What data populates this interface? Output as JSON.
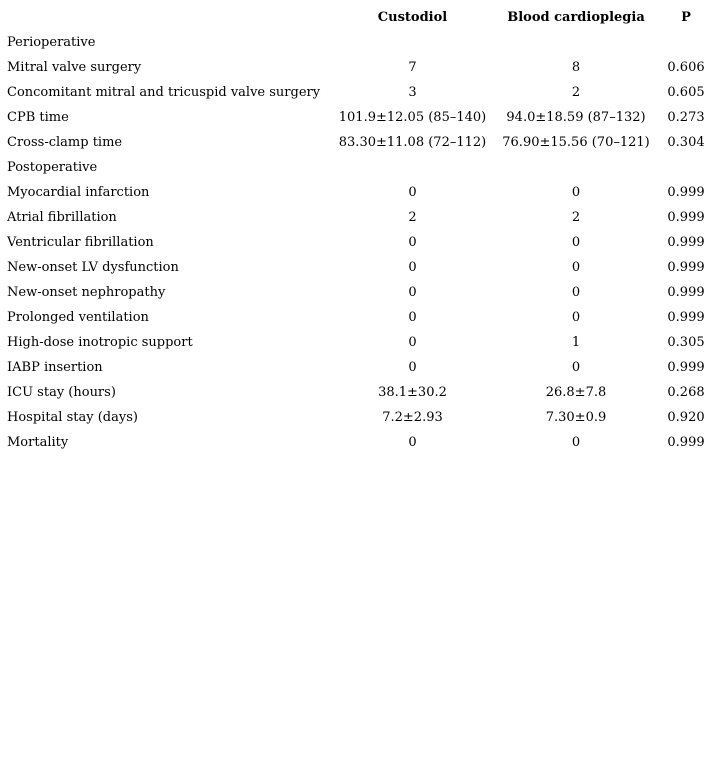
{
  "colors": {
    "text": "#000000",
    "background": "#ffffff"
  },
  "table": {
    "headers": {
      "label": "",
      "custodiol": "Custodiol",
      "blood": "Blood cardioplegia",
      "p": "P"
    },
    "rows": [
      {
        "label": "Perioperative",
        "custodiol": "",
        "blood": "",
        "p": ""
      },
      {
        "label": "Mitral valve surgery",
        "custodiol": "7",
        "blood": "8",
        "p": "0.606"
      },
      {
        "label": "Concomitant mitral and tricuspid valve surgery",
        "custodiol": "3",
        "blood": "2",
        "p": "0.605"
      },
      {
        "label": "CPB time",
        "custodiol": "101.9±12.05 (85–140)",
        "blood": "94.0±18.59 (87–132)",
        "p": "0.273"
      },
      {
        "label": "Cross-clamp time",
        "custodiol": "83.30±11.08 (72–112)",
        "blood": "76.90±15.56 (70–121)",
        "p": "0.304"
      },
      {
        "label": "Postoperative",
        "custodiol": "",
        "blood": "",
        "p": ""
      },
      {
        "label": "Myocardial infarction",
        "custodiol": "0",
        "blood": "0",
        "p": "0.999"
      },
      {
        "label": "Atrial fibrillation",
        "custodiol": "2",
        "blood": "2",
        "p": "0.999"
      },
      {
        "label": "Ventricular fibrillation",
        "custodiol": "0",
        "blood": "0",
        "p": "0.999"
      },
      {
        "label": "New-onset LV dysfunction",
        "custodiol": "0",
        "blood": "0",
        "p": "0.999"
      },
      {
        "label": "New-onset nephropathy",
        "custodiol": "0",
        "blood": "0",
        "p": "0.999"
      },
      {
        "label": "Prolonged ventilation",
        "custodiol": "0",
        "blood": "0",
        "p": "0.999"
      },
      {
        "label": "High-dose inotropic support",
        "custodiol": "0",
        "blood": "1",
        "p": "0.305"
      },
      {
        "label": "IABP insertion",
        "custodiol": "0",
        "blood": "0",
        "p": "0.999"
      },
      {
        "label": "ICU stay (hours)",
        "custodiol": "38.1±30.2",
        "blood": "26.8±7.8",
        "p": "0.268"
      },
      {
        "label": "Hospital stay (days)",
        "custodiol": "7.2±2.93",
        "blood": "7.30±0.9",
        "p": "0.920"
      },
      {
        "label": "Mortality",
        "custodiol": "0",
        "blood": "0",
        "p": "0.999"
      }
    ]
  }
}
